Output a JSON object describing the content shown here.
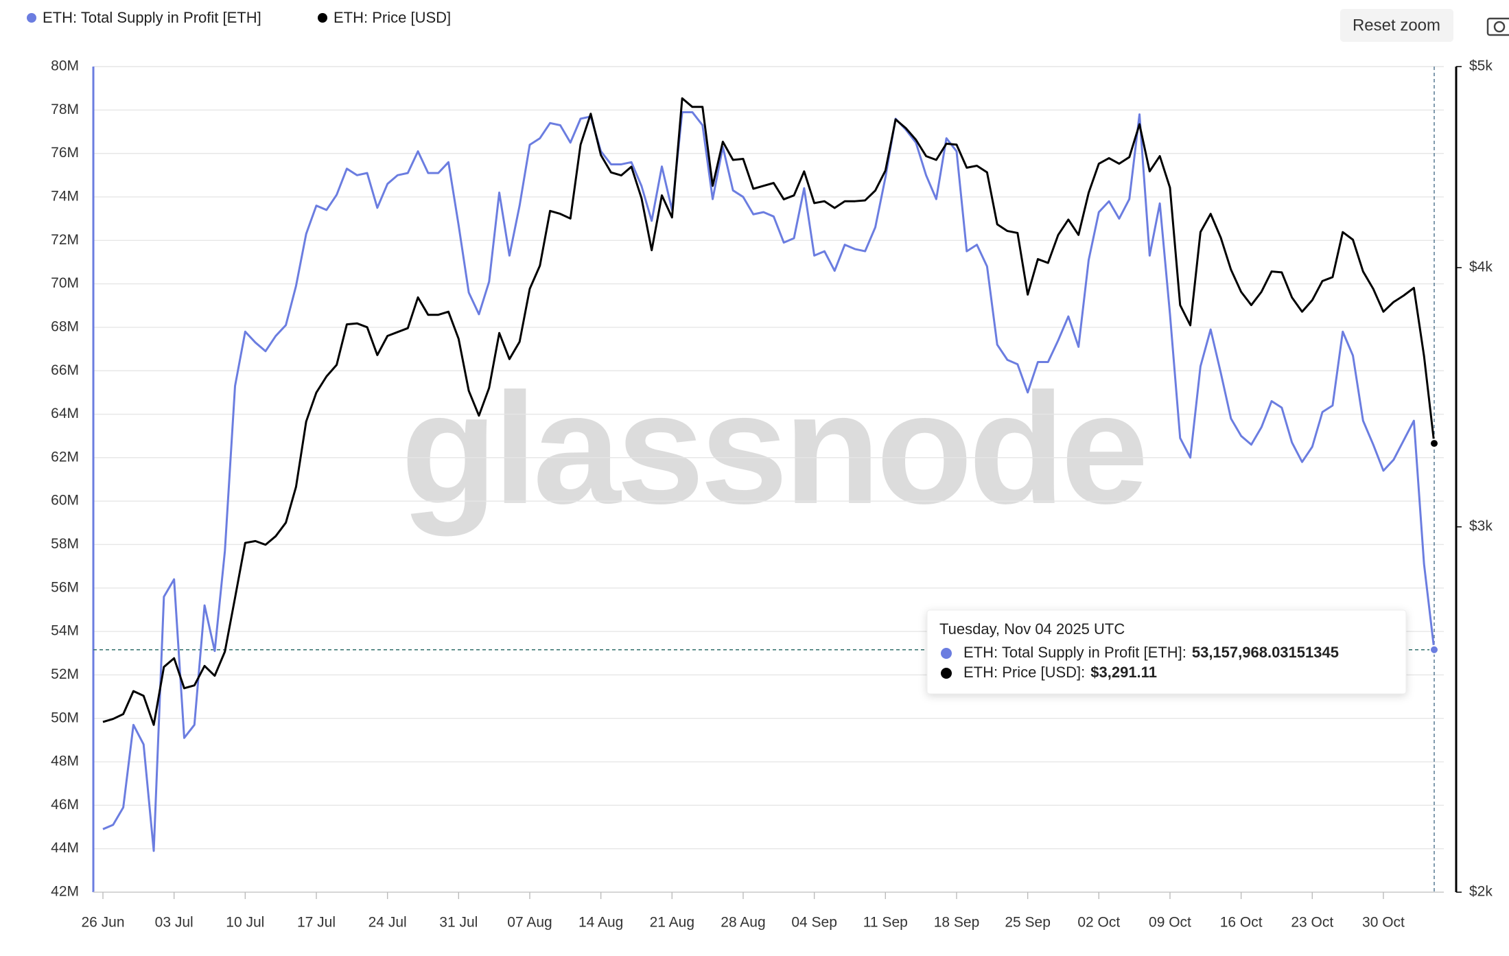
{
  "chart_data": {
    "type": "line",
    "legend": "top-left",
    "grid": true,
    "watermark": "glassnode",
    "reset_button": "Reset zoom",
    "categories": [
      "26 Jun",
      null,
      null,
      null,
      null,
      null,
      null,
      "03 Jul",
      null,
      null,
      null,
      null,
      null,
      null,
      "10 Jul",
      null,
      null,
      null,
      null,
      null,
      null,
      "17 Jul",
      null,
      null,
      null,
      null,
      null,
      null,
      "24 Jul",
      null,
      null,
      null,
      null,
      null,
      null,
      "31 Jul",
      null,
      null,
      null,
      null,
      null,
      null,
      "07 Aug",
      null,
      null,
      null,
      null,
      null,
      null,
      "14 Aug",
      null,
      null,
      null,
      null,
      null,
      null,
      "21 Aug",
      null,
      null,
      null,
      null,
      null,
      null,
      "28 Aug",
      null,
      null,
      null,
      null,
      null,
      null,
      "04 Sep",
      null,
      null,
      null,
      null,
      null,
      null,
      "11 Sep",
      null,
      null,
      null,
      null,
      null,
      null,
      "18 Sep",
      null,
      null,
      null,
      null,
      null,
      null,
      "25 Sep",
      null,
      null,
      null,
      null,
      null,
      null,
      "02 Oct",
      null,
      null,
      null,
      null,
      null,
      null,
      "09 Oct",
      null,
      null,
      null,
      null,
      null,
      null,
      "16 Oct",
      null,
      null,
      null,
      null,
      null,
      null,
      "23 Oct",
      null,
      null,
      null,
      null,
      null,
      null,
      "30 Oct",
      null,
      null,
      null,
      null,
      null
    ],
    "ylim": [
      42000000,
      80000000
    ],
    "yticks": [
      {
        "value": 42000000,
        "label": "42M"
      },
      {
        "value": 44000000,
        "label": "44M"
      },
      {
        "value": 46000000,
        "label": "46M"
      },
      {
        "value": 48000000,
        "label": "48M"
      },
      {
        "value": 50000000,
        "label": "50M"
      },
      {
        "value": 52000000,
        "label": "52M"
      },
      {
        "value": 54000000,
        "label": "54M"
      },
      {
        "value": 56000000,
        "label": "56M"
      },
      {
        "value": 58000000,
        "label": "58M"
      },
      {
        "value": 60000000,
        "label": "60M"
      },
      {
        "value": 62000000,
        "label": "62M"
      },
      {
        "value": 64000000,
        "label": "64M"
      },
      {
        "value": 66000000,
        "label": "66M"
      },
      {
        "value": 68000000,
        "label": "68M"
      },
      {
        "value": 70000000,
        "label": "70M"
      },
      {
        "value": 72000000,
        "label": "72M"
      },
      {
        "value": 74000000,
        "label": "74M"
      },
      {
        "value": 76000000,
        "label": "76M"
      },
      {
        "value": 78000000,
        "label": "78M"
      },
      {
        "value": 80000000,
        "label": "80M"
      }
    ],
    "y2lim": [
      2000,
      5000
    ],
    "y2scale": "log",
    "y2ticks": [
      {
        "value": 2000,
        "label": "$2k"
      },
      {
        "value": 3000,
        "label": "$3k"
      },
      {
        "value": 4000,
        "label": "$4k"
      },
      {
        "value": 5000,
        "label": "$5k"
      }
    ],
    "series": [
      {
        "name": "ETH: Total Supply in Profit [ETH]",
        "color": "#6b7de0",
        "axis": "y",
        "values": [
          44900000,
          45100000,
          45900000,
          49700000,
          48800000,
          43900000,
          55600000,
          56400000,
          49100000,
          49700000,
          55200000,
          53100000,
          57700000,
          65300000,
          67800000,
          67300000,
          66900000,
          67600000,
          68100000,
          69900000,
          72300000,
          73600000,
          73400000,
          74100000,
          75300000,
          75000000,
          75100000,
          73500000,
          74600000,
          75000000,
          75100000,
          76100000,
          75100000,
          75100000,
          75600000,
          72700000,
          69600000,
          68600000,
          70100000,
          74200000,
          71300000,
          73600000,
          76400000,
          76700000,
          77400000,
          77300000,
          76500000,
          77600000,
          77700000,
          76100000,
          75500000,
          75500000,
          75600000,
          74500000,
          72900000,
          75400000,
          73400000,
          77900000,
          77900000,
          77300000,
          73900000,
          76300000,
          74300000,
          74000000,
          73200000,
          73300000,
          73100000,
          71900000,
          72100000,
          74400000,
          71300000,
          71500000,
          70600000,
          71800000,
          71600000,
          71500000,
          72600000,
          74900000,
          77600000,
          77100000,
          76500000,
          75000000,
          73900000,
          76700000,
          76100000,
          71500000,
          71800000,
          70800000,
          67200000,
          66500000,
          66300000,
          65000000,
          66400000,
          66400000,
          67400000,
          68500000,
          67100000,
          71100000,
          73300000,
          73800000,
          73000000,
          73900000,
          77800000,
          71300000,
          73700000,
          68600000,
          62900000,
          62000000,
          66200000,
          67900000,
          65900000,
          63800000,
          63000000,
          62600000,
          63400000,
          64600000,
          64300000,
          62700000,
          61800000,
          62500000,
          64100000,
          64400000,
          67800000,
          66700000,
          63700000,
          62600000,
          61400000,
          61900000,
          62800000,
          63700000,
          57100000,
          53157968.03151345
        ]
      },
      {
        "name": "ETH: Price [USD]",
        "color": "#000000",
        "axis": "y2",
        "values": [
          2416,
          2424,
          2437,
          2500,
          2487,
          2408,
          2568,
          2593,
          2508,
          2516,
          2571,
          2543,
          2612,
          2773,
          2947,
          2953,
          2941,
          2969,
          3014,
          3136,
          3372,
          3482,
          3545,
          3591,
          3756,
          3760,
          3744,
          3630,
          3708,
          3724,
          3740,
          3870,
          3796,
          3796,
          3809,
          3696,
          3489,
          3394,
          3500,
          3720,
          3614,
          3684,
          3907,
          4009,
          4260,
          4246,
          4224,
          4585,
          4745,
          4532,
          4446,
          4431,
          4474,
          4320,
          4078,
          4334,
          4229,
          4827,
          4781,
          4781,
          4380,
          4600,
          4508,
          4513,
          4366,
          4380,
          4394,
          4315,
          4334,
          4451,
          4297,
          4306,
          4274,
          4306,
          4306,
          4310,
          4357,
          4455,
          4715,
          4670,
          4610,
          4527,
          4508,
          4590,
          4585,
          4469,
          4479,
          4446,
          4197,
          4166,
          4157,
          3882,
          4038,
          4021,
          4148,
          4219,
          4148,
          4347,
          4489,
          4517,
          4489,
          4522,
          4690,
          4451,
          4527,
          4371,
          3837,
          3752,
          4161,
          4246,
          4135,
          3991,
          3894,
          3837,
          3894,
          3983,
          3979,
          3870,
          3809,
          3858,
          3941,
          3958,
          4161,
          4126,
          3983,
          3907,
          3809,
          3850,
          3878,
          3911,
          3626,
          3291.11
        ]
      }
    ],
    "tooltip": {
      "title": "Tuesday, Nov 04 2025 UTC",
      "separator": ":",
      "value_labels": [
        "53,157,968.03151345",
        "$3,291.11"
      ]
    }
  }
}
